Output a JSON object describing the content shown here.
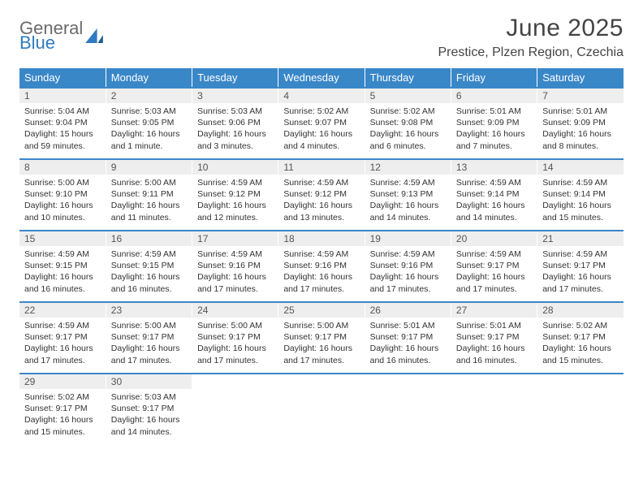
{
  "logo": {
    "line1": "General",
    "line2": "Blue"
  },
  "title": "June 2025",
  "location": "Prestice, Plzen Region, Czechia",
  "colors": {
    "header_bg": "#3a87c8",
    "header_text": "#ffffff",
    "daynum_bg": "#eeeeee",
    "row_border": "#3a87c8",
    "logo_gray": "#6b6b6b",
    "logo_blue": "#2f7bbf"
  },
  "weekdays": [
    "Sunday",
    "Monday",
    "Tuesday",
    "Wednesday",
    "Thursday",
    "Friday",
    "Saturday"
  ],
  "days": [
    {
      "n": "1",
      "sunrise": "5:04 AM",
      "sunset": "9:04 PM",
      "daylight": "15 hours and 59 minutes."
    },
    {
      "n": "2",
      "sunrise": "5:03 AM",
      "sunset": "9:05 PM",
      "daylight": "16 hours and 1 minute."
    },
    {
      "n": "3",
      "sunrise": "5:03 AM",
      "sunset": "9:06 PM",
      "daylight": "16 hours and 3 minutes."
    },
    {
      "n": "4",
      "sunrise": "5:02 AM",
      "sunset": "9:07 PM",
      "daylight": "16 hours and 4 minutes."
    },
    {
      "n": "5",
      "sunrise": "5:02 AM",
      "sunset": "9:08 PM",
      "daylight": "16 hours and 6 minutes."
    },
    {
      "n": "6",
      "sunrise": "5:01 AM",
      "sunset": "9:09 PM",
      "daylight": "16 hours and 7 minutes."
    },
    {
      "n": "7",
      "sunrise": "5:01 AM",
      "sunset": "9:09 PM",
      "daylight": "16 hours and 8 minutes."
    },
    {
      "n": "8",
      "sunrise": "5:00 AM",
      "sunset": "9:10 PM",
      "daylight": "16 hours and 10 minutes."
    },
    {
      "n": "9",
      "sunrise": "5:00 AM",
      "sunset": "9:11 PM",
      "daylight": "16 hours and 11 minutes."
    },
    {
      "n": "10",
      "sunrise": "4:59 AM",
      "sunset": "9:12 PM",
      "daylight": "16 hours and 12 minutes."
    },
    {
      "n": "11",
      "sunrise": "4:59 AM",
      "sunset": "9:12 PM",
      "daylight": "16 hours and 13 minutes."
    },
    {
      "n": "12",
      "sunrise": "4:59 AM",
      "sunset": "9:13 PM",
      "daylight": "16 hours and 14 minutes."
    },
    {
      "n": "13",
      "sunrise": "4:59 AM",
      "sunset": "9:14 PM",
      "daylight": "16 hours and 14 minutes."
    },
    {
      "n": "14",
      "sunrise": "4:59 AM",
      "sunset": "9:14 PM",
      "daylight": "16 hours and 15 minutes."
    },
    {
      "n": "15",
      "sunrise": "4:59 AM",
      "sunset": "9:15 PM",
      "daylight": "16 hours and 16 minutes."
    },
    {
      "n": "16",
      "sunrise": "4:59 AM",
      "sunset": "9:15 PM",
      "daylight": "16 hours and 16 minutes."
    },
    {
      "n": "17",
      "sunrise": "4:59 AM",
      "sunset": "9:16 PM",
      "daylight": "16 hours and 17 minutes."
    },
    {
      "n": "18",
      "sunrise": "4:59 AM",
      "sunset": "9:16 PM",
      "daylight": "16 hours and 17 minutes."
    },
    {
      "n": "19",
      "sunrise": "4:59 AM",
      "sunset": "9:16 PM",
      "daylight": "16 hours and 17 minutes."
    },
    {
      "n": "20",
      "sunrise": "4:59 AM",
      "sunset": "9:17 PM",
      "daylight": "16 hours and 17 minutes."
    },
    {
      "n": "21",
      "sunrise": "4:59 AM",
      "sunset": "9:17 PM",
      "daylight": "16 hours and 17 minutes."
    },
    {
      "n": "22",
      "sunrise": "4:59 AM",
      "sunset": "9:17 PM",
      "daylight": "16 hours and 17 minutes."
    },
    {
      "n": "23",
      "sunrise": "5:00 AM",
      "sunset": "9:17 PM",
      "daylight": "16 hours and 17 minutes."
    },
    {
      "n": "24",
      "sunrise": "5:00 AM",
      "sunset": "9:17 PM",
      "daylight": "16 hours and 17 minutes."
    },
    {
      "n": "25",
      "sunrise": "5:00 AM",
      "sunset": "9:17 PM",
      "daylight": "16 hours and 17 minutes."
    },
    {
      "n": "26",
      "sunrise": "5:01 AM",
      "sunset": "9:17 PM",
      "daylight": "16 hours and 16 minutes."
    },
    {
      "n": "27",
      "sunrise": "5:01 AM",
      "sunset": "9:17 PM",
      "daylight": "16 hours and 16 minutes."
    },
    {
      "n": "28",
      "sunrise": "5:02 AM",
      "sunset": "9:17 PM",
      "daylight": "16 hours and 15 minutes."
    },
    {
      "n": "29",
      "sunrise": "5:02 AM",
      "sunset": "9:17 PM",
      "daylight": "16 hours and 15 minutes."
    },
    {
      "n": "30",
      "sunrise": "5:03 AM",
      "sunset": "9:17 PM",
      "daylight": "16 hours and 14 minutes."
    }
  ],
  "labels": {
    "sunrise": "Sunrise:",
    "sunset": "Sunset:",
    "daylight": "Daylight:"
  }
}
